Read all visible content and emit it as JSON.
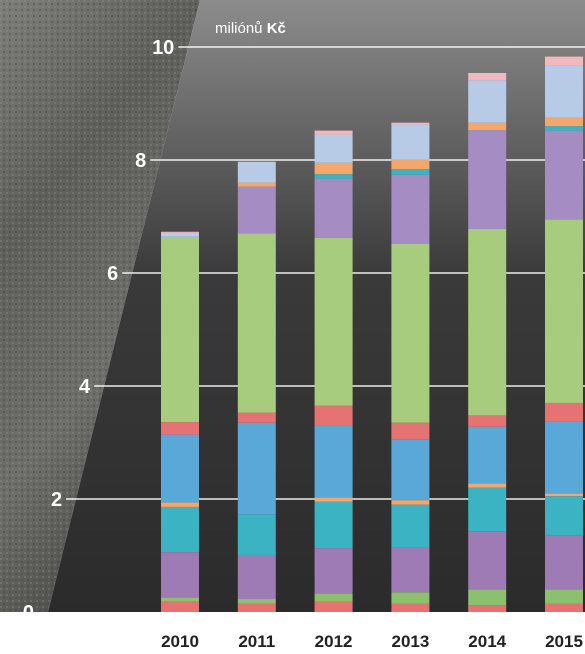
{
  "chart_data": {
    "type": "bar",
    "stacked": true,
    "unit_label": "miliónů",
    "unit_label_bold": "Kč",
    "ylim": [
      0,
      10
    ],
    "yticks": [
      "0",
      "2",
      "4",
      "6",
      "8",
      "10"
    ],
    "grid": true,
    "categories": [
      "2010",
      "2011",
      "2012",
      "2013",
      "2014",
      "2015"
    ],
    "series": [
      {
        "color": "#e57373",
        "values": [
          0.18,
          0.15,
          0.18,
          0.15,
          0.12,
          0.15
        ]
      },
      {
        "color": "#8cbf6e",
        "values": [
          0.08,
          0.08,
          0.15,
          0.2,
          0.28,
          0.25
        ]
      },
      {
        "color": "#9e7bb5",
        "values": [
          0.8,
          0.78,
          0.8,
          0.8,
          1.02,
          0.95
        ]
      },
      {
        "color": "#3bb3c3",
        "values": [
          0.8,
          0.72,
          0.82,
          0.75,
          0.78,
          0.7
        ]
      },
      {
        "color": "#f3a76a",
        "values": [
          0.08,
          0.0,
          0.08,
          0.08,
          0.08,
          0.05
        ]
      },
      {
        "color": "#5aa8d8",
        "values": [
          1.2,
          1.62,
          1.27,
          1.07,
          1.0,
          1.27
        ]
      },
      {
        "color": "#e57373",
        "values": [
          0.22,
          0.18,
          0.35,
          0.3,
          0.2,
          0.33
        ]
      },
      {
        "color": "#a8cc7d",
        "values": [
          3.28,
          3.17,
          2.97,
          3.17,
          3.3,
          3.25
        ]
      },
      {
        "color": "#a58cc2",
        "values": [
          0.0,
          0.83,
          1.05,
          1.22,
          1.75,
          1.57
        ]
      },
      {
        "color": "#3bb3c3",
        "values": [
          0.0,
          0.0,
          0.08,
          0.1,
          0.0,
          0.08
        ]
      },
      {
        "color": "#f3a76a",
        "values": [
          0.0,
          0.07,
          0.2,
          0.17,
          0.13,
          0.15
        ]
      },
      {
        "color": "#b7cbe6",
        "values": [
          0.07,
          0.37,
          0.5,
          0.62,
          0.75,
          0.93
        ]
      },
      {
        "color": "#f1b9bd",
        "values": [
          0.02,
          0.0,
          0.07,
          0.03,
          0.13,
          0.15
        ]
      }
    ]
  }
}
